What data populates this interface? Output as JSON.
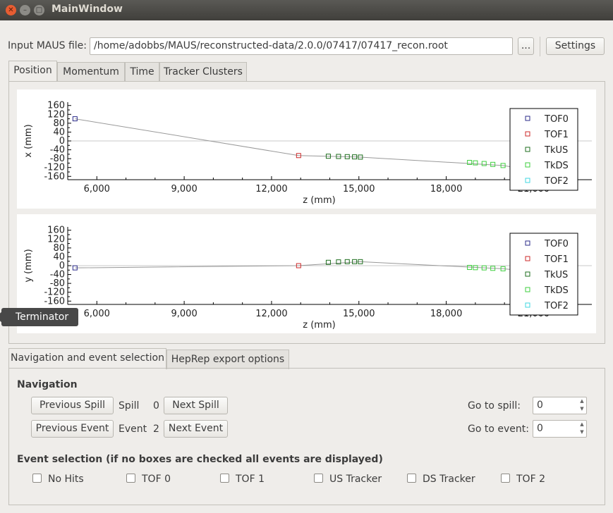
{
  "window": {
    "title": "MainWindow",
    "close_glyph": "✕",
    "min_glyph": "–",
    "max_glyph": "□"
  },
  "input": {
    "label": "Input MAUS file:",
    "value": "/home/adobbs/MAUS/reconstructed-data/2.0.0/07417/07417_recon.root",
    "browse_label": "...",
    "settings_label": "Settings"
  },
  "tabs": [
    "Position",
    "Momentum",
    "Time",
    "Tracker Clusters"
  ],
  "tooltip": "Terminator",
  "bottom_tabs": [
    "Navigation and event selection",
    "HepRep export options"
  ],
  "navigation": {
    "heading": "Navigation",
    "prev_spill": "Previous Spill",
    "spill_label": "Spill",
    "spill_value": "0",
    "next_spill": "Next Spill",
    "prev_event": "Previous Event",
    "event_label": "Event",
    "event_value": "2",
    "next_event": "Next Event",
    "goto_spill_label": "Go to spill:",
    "goto_spill_value": "0",
    "goto_event_label": "Go to event:",
    "goto_event_value": "0"
  },
  "event_selection": {
    "heading": "Event selection (if no boxes are checked all events are displayed)",
    "options": [
      "No Hits",
      "TOF 0",
      "TOF 1",
      "US Tracker",
      "DS Tracker",
      "TOF 2"
    ]
  },
  "chart_data": [
    {
      "type": "scatter",
      "xlabel": "z (mm)",
      "ylabel": "x (mm)",
      "xlim": [
        5000,
        23000
      ],
      "ylim": [
        -175,
        175
      ],
      "xticks": [
        6000,
        9000,
        12000,
        15000,
        18000,
        21000
      ],
      "xtick_labels": [
        "6,000",
        "9,000",
        "12,000",
        "15,000",
        "18,000",
        "21,000"
      ],
      "yticks": [
        160,
        120,
        80,
        40,
        0,
        -40,
        -80,
        -120,
        -160
      ],
      "ytick_labels": [
        "160",
        "120",
        "80",
        "40",
        "0",
        "-40",
        "-80",
        "-120",
        "-160"
      ],
      "legend": "right",
      "series": [
        {
          "name": "TOF0",
          "color": "#2b2b8a",
          "x": [
            5250
          ],
          "y": [
            100
          ]
        },
        {
          "name": "TOF1",
          "color": "#cc2a2a",
          "x": [
            12930
          ],
          "y": [
            -66
          ]
        },
        {
          "name": "TkUS",
          "color": "#1e6e1e",
          "x": [
            13950,
            14300,
            14600,
            14850,
            15050
          ],
          "y": [
            -69,
            -70,
            -71,
            -72,
            -73
          ]
        },
        {
          "name": "TkDS",
          "color": "#3ecf3e",
          "x": [
            18800,
            19000,
            19300,
            19600,
            19950
          ],
          "y": [
            -97,
            -99,
            -102,
            -106,
            -111
          ]
        },
        {
          "name": "TOF2",
          "color": "#3fd7e0",
          "x": [
            21100
          ],
          "y": [
            -136
          ]
        }
      ],
      "track": {
        "color": "#999999",
        "x": [
          5250,
          12930,
          15050,
          19950,
          21100
        ],
        "y": [
          100,
          -66,
          -73,
          -111,
          -136
        ]
      }
    },
    {
      "type": "scatter",
      "xlabel": "z (mm)",
      "ylabel": "y (mm)",
      "xlim": [
        5000,
        23000
      ],
      "ylim": [
        -175,
        175
      ],
      "xticks": [
        6000,
        9000,
        12000,
        15000,
        18000,
        21000
      ],
      "xtick_labels": [
        "6,000",
        "9,000",
        "12,000",
        "15,000",
        "18,000",
        "21,000"
      ],
      "yticks": [
        160,
        120,
        80,
        40,
        0,
        -40,
        -80,
        -120,
        -160
      ],
      "ytick_labels": [
        "160",
        "120",
        "80",
        "40",
        "0",
        "-40",
        "-80",
        "-120",
        "-160"
      ],
      "legend": "right",
      "series": [
        {
          "name": "TOF0",
          "color": "#2b2b8a",
          "x": [
            5250
          ],
          "y": [
            -10
          ]
        },
        {
          "name": "TOF1",
          "color": "#cc2a2a",
          "x": [
            12930
          ],
          "y": [
            0
          ]
        },
        {
          "name": "TkUS",
          "color": "#1e6e1e",
          "x": [
            13950,
            14300,
            14600,
            14850,
            15050
          ],
          "y": [
            15,
            17,
            18,
            18,
            18
          ]
        },
        {
          "name": "TkDS",
          "color": "#3ecf3e",
          "x": [
            18800,
            19000,
            19300,
            19600,
            19950
          ],
          "y": [
            -8,
            -9,
            -10,
            -12,
            -14
          ]
        },
        {
          "name": "TOF2",
          "color": "#3fd7e0",
          "x": [
            21100
          ],
          "y": [
            -28
          ]
        }
      ],
      "track": {
        "color": "#999999",
        "x": [
          5250,
          12930,
          15050,
          19950,
          21100
        ],
        "y": [
          -10,
          0,
          18,
          -14,
          -28
        ]
      }
    }
  ]
}
